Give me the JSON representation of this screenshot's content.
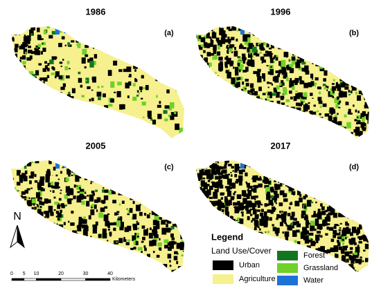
{
  "panels": [
    {
      "title": "1986",
      "label": "(a)"
    },
    {
      "title": "1996",
      "label": "(b)"
    },
    {
      "title": "2005",
      "label": "(c)"
    },
    {
      "title": "2017",
      "label": "(d)"
    }
  ],
  "legend": {
    "title": "Legend",
    "subtitle": "Land Use/Cover",
    "items": [
      {
        "name": "Urban",
        "color": "#000000"
      },
      {
        "name": "Agriculture",
        "color": "#f6f08e"
      },
      {
        "name": "Forest",
        "color": "#13761f"
      },
      {
        "name": "Grassland",
        "color": "#6fd12a"
      },
      {
        "name": "Water",
        "color": "#1d72d8"
      }
    ]
  },
  "north": "N",
  "scale_bar": {
    "ticks": [
      0,
      5,
      10,
      20,
      30,
      40
    ],
    "unit": "Kilometers"
  }
}
